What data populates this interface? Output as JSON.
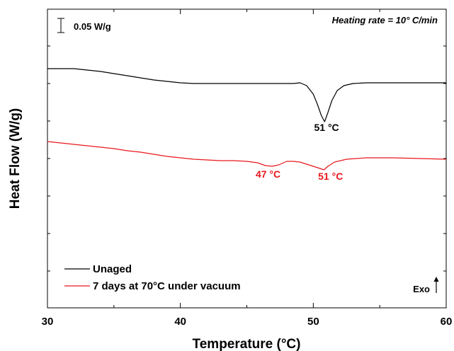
{
  "chart_data": {
    "type": "line",
    "xlabel": "Temperature (°C)",
    "ylabel": "Heat Flow (W/g)",
    "xlim": [
      30,
      60
    ],
    "x_ticks": [
      "30",
      "40",
      "50",
      "60"
    ],
    "y_tick_labels": false,
    "grid": false,
    "legend_position": "bottom-left",
    "scale_bar_label": "0.05 W/g",
    "heating_rate_label": "Heating rate = 10° C/min",
    "exo_label": "Exo",
    "series": [
      {
        "name": "Unaged",
        "color": "#000000",
        "points": [
          [
            30.0,
            0.0
          ],
          [
            31.0,
            0.0
          ],
          [
            32.0,
            0.0
          ],
          [
            33.0,
            -0.002
          ],
          [
            34.0,
            -0.004
          ],
          [
            35.0,
            -0.007
          ],
          [
            36.0,
            -0.01
          ],
          [
            37.0,
            -0.013
          ],
          [
            38.0,
            -0.016
          ],
          [
            39.0,
            -0.018
          ],
          [
            40.0,
            -0.02
          ],
          [
            41.0,
            -0.021
          ],
          [
            42.0,
            -0.021
          ],
          [
            43.0,
            -0.021
          ],
          [
            44.0,
            -0.021
          ],
          [
            45.0,
            -0.021
          ],
          [
            46.0,
            -0.021
          ],
          [
            47.0,
            -0.021
          ],
          [
            48.0,
            -0.021
          ],
          [
            48.5,
            -0.021
          ],
          [
            49.0,
            -0.02
          ],
          [
            49.5,
            -0.024
          ],
          [
            50.0,
            -0.036
          ],
          [
            50.3,
            -0.05
          ],
          [
            50.6,
            -0.066
          ],
          [
            50.85,
            -0.075
          ],
          [
            51.1,
            -0.062
          ],
          [
            51.4,
            -0.045
          ],
          [
            51.8,
            -0.031
          ],
          [
            52.3,
            -0.024
          ],
          [
            53.0,
            -0.021
          ],
          [
            54.0,
            -0.02
          ],
          [
            56.0,
            -0.02
          ],
          [
            58.0,
            -0.02
          ],
          [
            60.0,
            -0.02
          ]
        ]
      },
      {
        "name": "7 days at 70°C under vacuum",
        "color": "#e8181c",
        "points": [
          [
            30.0,
            -0.103
          ],
          [
            31.0,
            -0.105
          ],
          [
            32.0,
            -0.107
          ],
          [
            33.0,
            -0.109
          ],
          [
            34.0,
            -0.111
          ],
          [
            35.0,
            -0.113
          ],
          [
            36.0,
            -0.116
          ],
          [
            37.0,
            -0.118
          ],
          [
            38.0,
            -0.121
          ],
          [
            39.0,
            -0.124
          ],
          [
            40.0,
            -0.126
          ],
          [
            41.0,
            -0.128
          ],
          [
            42.0,
            -0.129
          ],
          [
            43.0,
            -0.13
          ],
          [
            44.0,
            -0.13
          ],
          [
            45.0,
            -0.131
          ],
          [
            45.8,
            -0.133
          ],
          [
            46.4,
            -0.137
          ],
          [
            46.9,
            -0.138
          ],
          [
            47.4,
            -0.136
          ],
          [
            48.0,
            -0.131
          ],
          [
            48.5,
            -0.131
          ],
          [
            49.0,
            -0.132
          ],
          [
            49.5,
            -0.135
          ],
          [
            50.0,
            -0.138
          ],
          [
            50.5,
            -0.141
          ],
          [
            50.8,
            -0.143
          ],
          [
            51.1,
            -0.138
          ],
          [
            51.6,
            -0.132
          ],
          [
            52.5,
            -0.128
          ],
          [
            54.0,
            -0.126
          ],
          [
            56.0,
            -0.126
          ],
          [
            58.0,
            -0.127
          ],
          [
            60.0,
            -0.128
          ]
        ]
      }
    ],
    "annotations": [
      {
        "text": "51 °C",
        "x": 51.0,
        "y": -0.088,
        "color": "#000000"
      },
      {
        "text": "47 °C",
        "x": 46.6,
        "y": -0.154,
        "color": "#e8181c"
      },
      {
        "text": "51 °C",
        "x": 51.3,
        "y": -0.157,
        "color": "#e8181c"
      }
    ]
  }
}
